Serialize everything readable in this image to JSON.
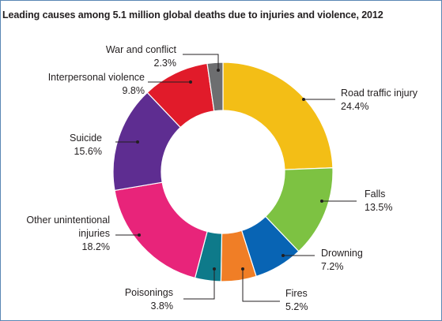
{
  "chart_data": {
    "type": "donut",
    "title": "Leading causes among 5.1 million global deaths due to injuries and violence, 2012",
    "unit": "%",
    "slices": [
      {
        "label": "Road traffic injury",
        "value": 24.4,
        "value_label": "24.4%",
        "color": "#f3be16"
      },
      {
        "label": "Falls",
        "value": 13.5,
        "value_label": "13.5%",
        "color": "#7dc242"
      },
      {
        "label": "Drowning",
        "value": 7.2,
        "value_label": "7.2%",
        "color": "#0864b4"
      },
      {
        "label": "Fires",
        "value": 5.2,
        "value_label": "5.2%",
        "color": "#f07e26"
      },
      {
        "label": "Poisonings",
        "value": 3.8,
        "value_label": "3.8%",
        "color": "#0e7a8a"
      },
      {
        "label": "Other unintentional injuries",
        "value": 18.2,
        "value_label": "18.2%",
        "color": "#e8247a"
      },
      {
        "label": "Suicide",
        "value": 15.6,
        "value_label": "15.6%",
        "color": "#5e2d91"
      },
      {
        "label": "Interpersonal violence",
        "value": 9.8,
        "value_label": "9.8%",
        "color": "#e11b2a"
      },
      {
        "label": "War and conflict",
        "value": 2.3,
        "value_label": "2.3%",
        "color": "#6d6e70"
      }
    ]
  }
}
